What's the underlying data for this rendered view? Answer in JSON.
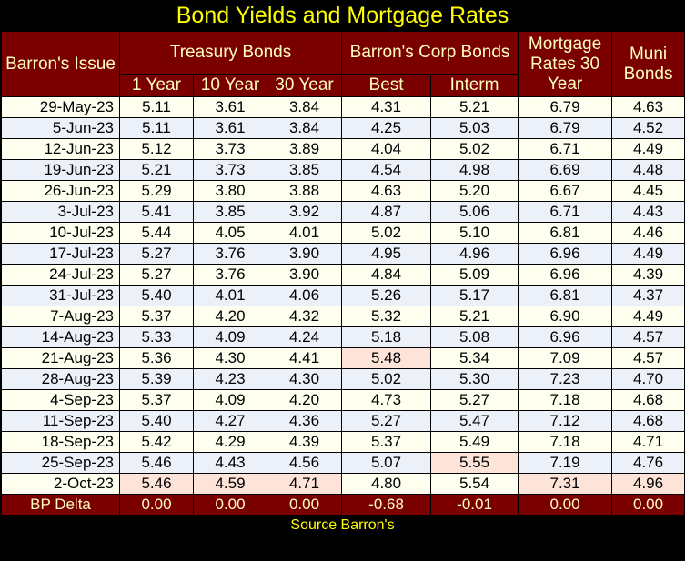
{
  "title": "Bond Yields and Mortgage Rates",
  "source": "Source Barron's",
  "headers": {
    "issue": "Barron's Issue",
    "treasury": "Treasury Bonds",
    "corp": "Barron's Corp Bonds",
    "mortgage": "Mortgage Rates 30 Year",
    "muni": "Muni Bonds",
    "sub": [
      "1 Year",
      "10 Year",
      "30 Year",
      "Best",
      "Interm"
    ]
  },
  "highlight_color": "#fde3d8",
  "chart_data": {
    "type": "table",
    "title": "Bond Yields and Mortgage Rates",
    "columns": [
      "Barron's Issue",
      "1 Year",
      "10 Year",
      "30 Year",
      "Best",
      "Interm",
      "Mortgage Rates 30 Year",
      "Muni Bonds"
    ],
    "rows": [
      [
        "29-May-23",
        "5.11",
        "3.61",
        "3.84",
        "4.31",
        "5.21",
        "6.79",
        "4.63"
      ],
      [
        "5-Jun-23",
        "5.11",
        "3.61",
        "3.84",
        "4.25",
        "5.03",
        "6.79",
        "4.52"
      ],
      [
        "12-Jun-23",
        "5.12",
        "3.73",
        "3.89",
        "4.04",
        "5.02",
        "6.71",
        "4.49"
      ],
      [
        "19-Jun-23",
        "5.21",
        "3.73",
        "3.85",
        "4.54",
        "4.98",
        "6.69",
        "4.48"
      ],
      [
        "26-Jun-23",
        "5.29",
        "3.80",
        "3.88",
        "4.63",
        "5.20",
        "6.67",
        "4.45"
      ],
      [
        "3-Jul-23",
        "5.41",
        "3.85",
        "3.92",
        "4.87",
        "5.06",
        "6.71",
        "4.43"
      ],
      [
        "10-Jul-23",
        "5.44",
        "4.05",
        "4.01",
        "5.02",
        "5.10",
        "6.81",
        "4.46"
      ],
      [
        "17-Jul-23",
        "5.27",
        "3.76",
        "3.90",
        "4.95",
        "4.96",
        "6.96",
        "4.49"
      ],
      [
        "24-Jul-23",
        "5.27",
        "3.76",
        "3.90",
        "4.84",
        "5.09",
        "6.96",
        "4.39"
      ],
      [
        "31-Jul-23",
        "5.40",
        "4.01",
        "4.06",
        "5.26",
        "5.17",
        "6.81",
        "4.37"
      ],
      [
        "7-Aug-23",
        "5.37",
        "4.20",
        "4.32",
        "5.32",
        "5.21",
        "6.90",
        "4.49"
      ],
      [
        "14-Aug-23",
        "5.33",
        "4.09",
        "4.24",
        "5.18",
        "5.08",
        "6.96",
        "4.57"
      ],
      [
        "21-Aug-23",
        "5.36",
        "4.30",
        "4.41",
        "5.48",
        "5.34",
        "7.09",
        "4.57"
      ],
      [
        "28-Aug-23",
        "5.39",
        "4.23",
        "4.30",
        "5.02",
        "5.30",
        "7.23",
        "4.70"
      ],
      [
        "4-Sep-23",
        "5.37",
        "4.09",
        "4.20",
        "4.73",
        "5.27",
        "7.18",
        "4.68"
      ],
      [
        "11-Sep-23",
        "5.40",
        "4.27",
        "4.36",
        "5.27",
        "5.47",
        "7.12",
        "4.68"
      ],
      [
        "18-Sep-23",
        "5.42",
        "4.29",
        "4.39",
        "5.37",
        "5.49",
        "7.18",
        "4.71"
      ],
      [
        "25-Sep-23",
        "5.46",
        "4.43",
        "4.56",
        "5.07",
        "5.55",
        "7.19",
        "4.76"
      ],
      [
        "2-Oct-23",
        "5.46",
        "4.59",
        "4.71",
        "4.80",
        "5.54",
        "7.31",
        "4.96"
      ]
    ],
    "highlighted": [
      [
        12,
        4
      ],
      [
        17,
        5
      ],
      [
        18,
        1
      ],
      [
        18,
        2
      ],
      [
        18,
        3
      ],
      [
        18,
        6
      ],
      [
        18,
        7
      ]
    ],
    "delta_row": [
      "BP Delta",
      "0.00",
      "0.00",
      "0.00",
      "-0.68",
      "-0.01",
      "0.00",
      "0.00"
    ]
  }
}
